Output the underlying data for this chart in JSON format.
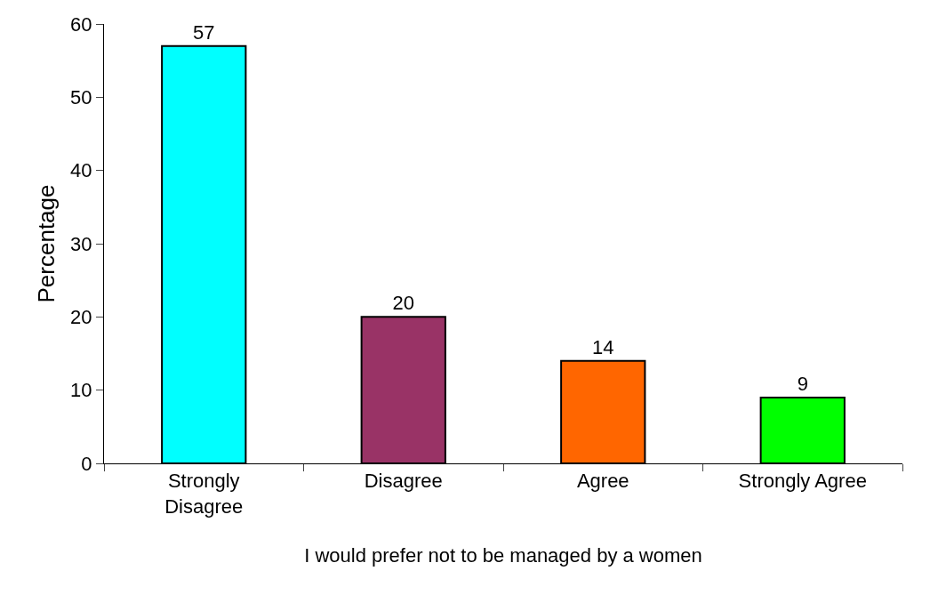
{
  "chart_data": {
    "type": "bar",
    "xlabel": "I would prefer not to be managed by a women",
    "ylabel": "Percentage",
    "categories": [
      "Strongly Disagree",
      "Disagree",
      "Agree",
      "Strongly Agree"
    ],
    "values": [
      57,
      20,
      14,
      9
    ],
    "colors": [
      "#00ffff",
      "#993366",
      "#ff6600",
      "#00ff00"
    ],
    "ylim": [
      0,
      60
    ],
    "yticks": [
      0,
      10,
      20,
      30,
      40,
      50,
      60
    ],
    "data_labels": true
  }
}
